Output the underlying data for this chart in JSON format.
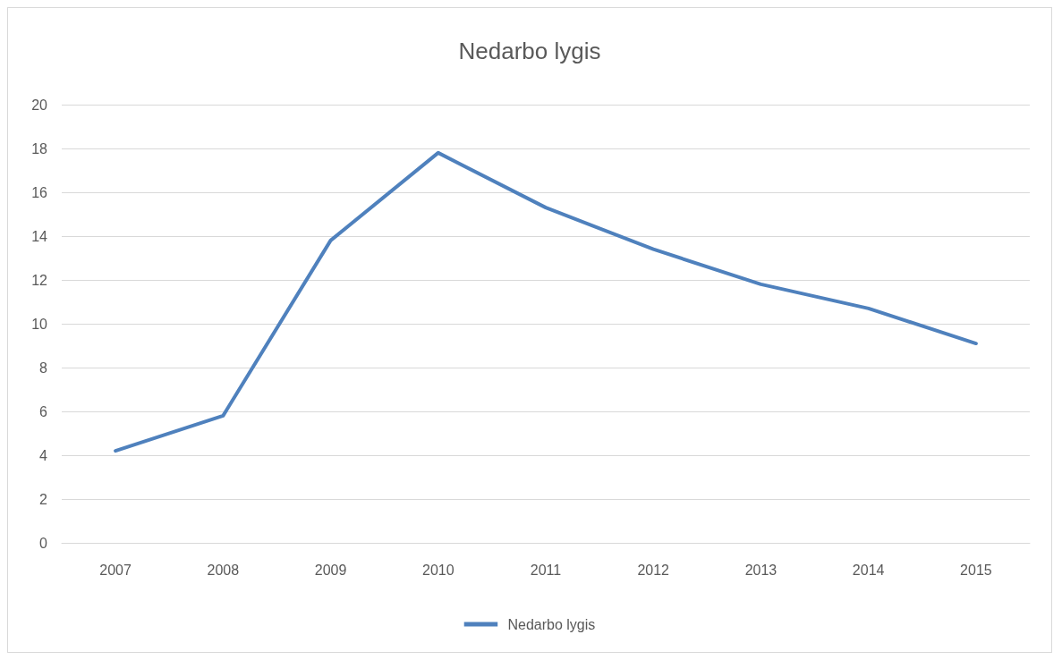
{
  "chart_data": {
    "type": "line",
    "title": "Nedarbo lygis",
    "categories": [
      "2007",
      "2008",
      "2009",
      "2010",
      "2011",
      "2012",
      "2013",
      "2014",
      "2015"
    ],
    "series": [
      {
        "name": "Nedarbo lygis",
        "color": "#4f81bd",
        "values": [
          4.2,
          5.8,
          13.8,
          17.8,
          15.3,
          13.4,
          11.8,
          10.7,
          9.1
        ]
      }
    ],
    "ylim": [
      0,
      20
    ],
    "yticks": [
      0,
      2,
      4,
      6,
      8,
      10,
      12,
      14,
      16,
      18,
      20
    ],
    "grid": "y",
    "legend": "bottom",
    "marker": "none",
    "line_style": "solid"
  }
}
